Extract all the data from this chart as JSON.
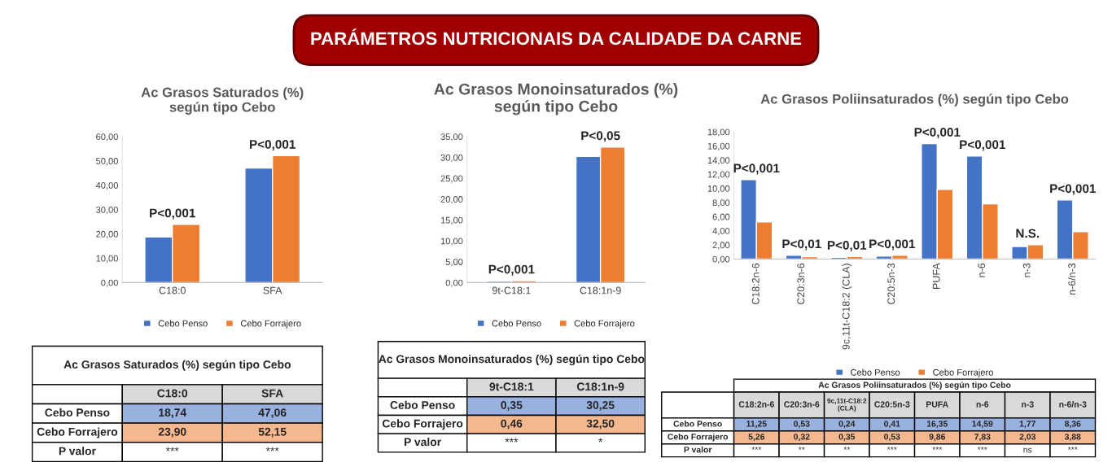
{
  "chart_data": [
    {
      "type": "other",
      "title": "PARÁMETROS NUTRICIONAIS DA CALIDADE DA CARNE"
    },
    {
      "type": "bar",
      "title": "Ac Grasos Saturados (%)\nsegún tipo Cebo",
      "categories": [
        "C18:0",
        "SFA"
      ],
      "series": [
        {
          "name": "Cebo Penso",
          "color": "#4472c4",
          "values": [
            18.74,
            47.06
          ],
          "value_labels": [
            "18,74",
            "47,06"
          ]
        },
        {
          "name": "Cebo Forrajero",
          "color": "#ed7d31",
          "values": [
            23.9,
            52.15
          ],
          "value_labels": [
            "23,90",
            "52,15"
          ]
        }
      ],
      "ylim": [
        0,
        60
      ],
      "yticks": [
        {
          "value": 0,
          "label": "0,00"
        },
        {
          "value": 10,
          "label": "10,00"
        },
        {
          "value": 20,
          "label": "20,00"
        },
        {
          "value": 30,
          "label": "30,00"
        },
        {
          "value": 40,
          "label": "40,00"
        },
        {
          "value": 50,
          "label": "50,00"
        },
        {
          "value": 60,
          "label": "60,00"
        }
      ],
      "legend": "bottom",
      "data_labels": true,
      "annotations": [
        {
          "text": "P<0,001",
          "x": "C18:0",
          "y": 23.9
        },
        {
          "text": "P<0,001",
          "x": "SFA",
          "y": 52.15
        },
        "P valor",
        "***",
        "***"
      ]
    },
    {
      "type": "bar",
      "title": "Ac Grasos Monoinsaturados (%)\nsegún tipo Cebo",
      "categories": [
        "9t-C18:1",
        "C18:1n-9"
      ],
      "series": [
        {
          "name": "Cebo Penso",
          "color": "#4472c4",
          "values": [
            0.35,
            30.25
          ],
          "value_labels": [
            "0,35",
            "30,25"
          ]
        },
        {
          "name": "Cebo Forrajero",
          "color": "#ed7d31",
          "values": [
            0.46,
            32.5
          ],
          "value_labels": [
            "0,46",
            "32,50"
          ]
        }
      ],
      "ylim": [
        0,
        35
      ],
      "yticks": [
        {
          "value": 0,
          "label": "0,00"
        },
        {
          "value": 5,
          "label": "5,00"
        },
        {
          "value": 10,
          "label": "10,00"
        },
        {
          "value": 15,
          "label": "15,00"
        },
        {
          "value": 20,
          "label": "20,00"
        },
        {
          "value": 25,
          "label": "25,00"
        },
        {
          "value": 30,
          "label": "30,00"
        },
        {
          "value": 35,
          "label": "35,00"
        }
      ],
      "legend": "bottom",
      "data_labels": true,
      "annotations": [
        {
          "text": "P<0,001",
          "x": "9t-C18:1",
          "y": 0.46
        },
        {
          "text": "P<0,05",
          "x": "C18:1n-9",
          "y": 32.5
        },
        "P valor",
        "***",
        "*"
      ]
    },
    {
      "type": "bar",
      "title": "Ac Grasos Poliinsaturados (%) según tipo Cebo",
      "categories": [
        "C18:2n-6",
        "C20:3n-6",
        "9c,11t-C18:2 (CLA)",
        "C20:5n-3",
        "PUFA",
        "n-6",
        "n-3",
        "n-6/n-3"
      ],
      "series": [
        {
          "name": "Cebo Penso",
          "color": "#4472c4",
          "values": [
            11.25,
            0.53,
            0.24,
            0.41,
            16.35,
            14.59,
            1.77,
            8.36
          ],
          "value_labels": [
            "11,25",
            "0,53",
            "0,24",
            "0,41",
            "16,35",
            "14,59",
            "1,77",
            "8,36"
          ]
        },
        {
          "name": "Cebo Forrajero",
          "color": "#ed7d31",
          "values": [
            5.26,
            0.32,
            0.35,
            0.53,
            9.86,
            7.83,
            2.03,
            3.88
          ],
          "value_labels": [
            "5,26",
            "0,32",
            "0,35",
            "0,53",
            "9,86",
            "7,83",
            "2,03",
            "3,88"
          ]
        }
      ],
      "ylim": [
        0,
        18
      ],
      "yticks": [
        {
          "value": 0,
          "label": "0,00"
        },
        {
          "value": 2,
          "label": "2,00"
        },
        {
          "value": 4,
          "label": "4,00"
        },
        {
          "value": 6,
          "label": "6,00"
        },
        {
          "value": 8,
          "label": "8,00"
        },
        {
          "value": 10,
          "label": "10,00"
        },
        {
          "value": 12,
          "label": "12,00"
        },
        {
          "value": 14,
          "label": "14,00"
        },
        {
          "value": 16,
          "label": "16,00"
        },
        {
          "value": 18,
          "label": "18,00"
        }
      ],
      "legend": "bottom",
      "data_labels": true,
      "annotations": [
        {
          "text": "P<0,001",
          "x": "C18:2n-6",
          "y": 11.25
        },
        {
          "text": "P<0,01",
          "x": "C20:3n-6",
          "y": 0.53
        },
        {
          "text": "P<0,01",
          "x": "9c,11t-C18:2 (CLA)",
          "y": 0.35
        },
        {
          "text": "P<0,001",
          "x": "C20:5n-3",
          "y": 0.53
        },
        {
          "text": "P<0,001",
          "x": "PUFA",
          "y": 16.35
        },
        {
          "text": "P<0,001",
          "x": "n-6",
          "y": 14.59
        },
        {
          "text": "N.S.",
          "x": "n-3",
          "y": 2.03
        },
        {
          "text": "P<0,001",
          "x": "n-6/n-3",
          "y": 8.36
        },
        "P valor",
        "***",
        "**",
        "**",
        "***",
        "***",
        "***",
        "ns",
        "***"
      ]
    }
  ]
}
